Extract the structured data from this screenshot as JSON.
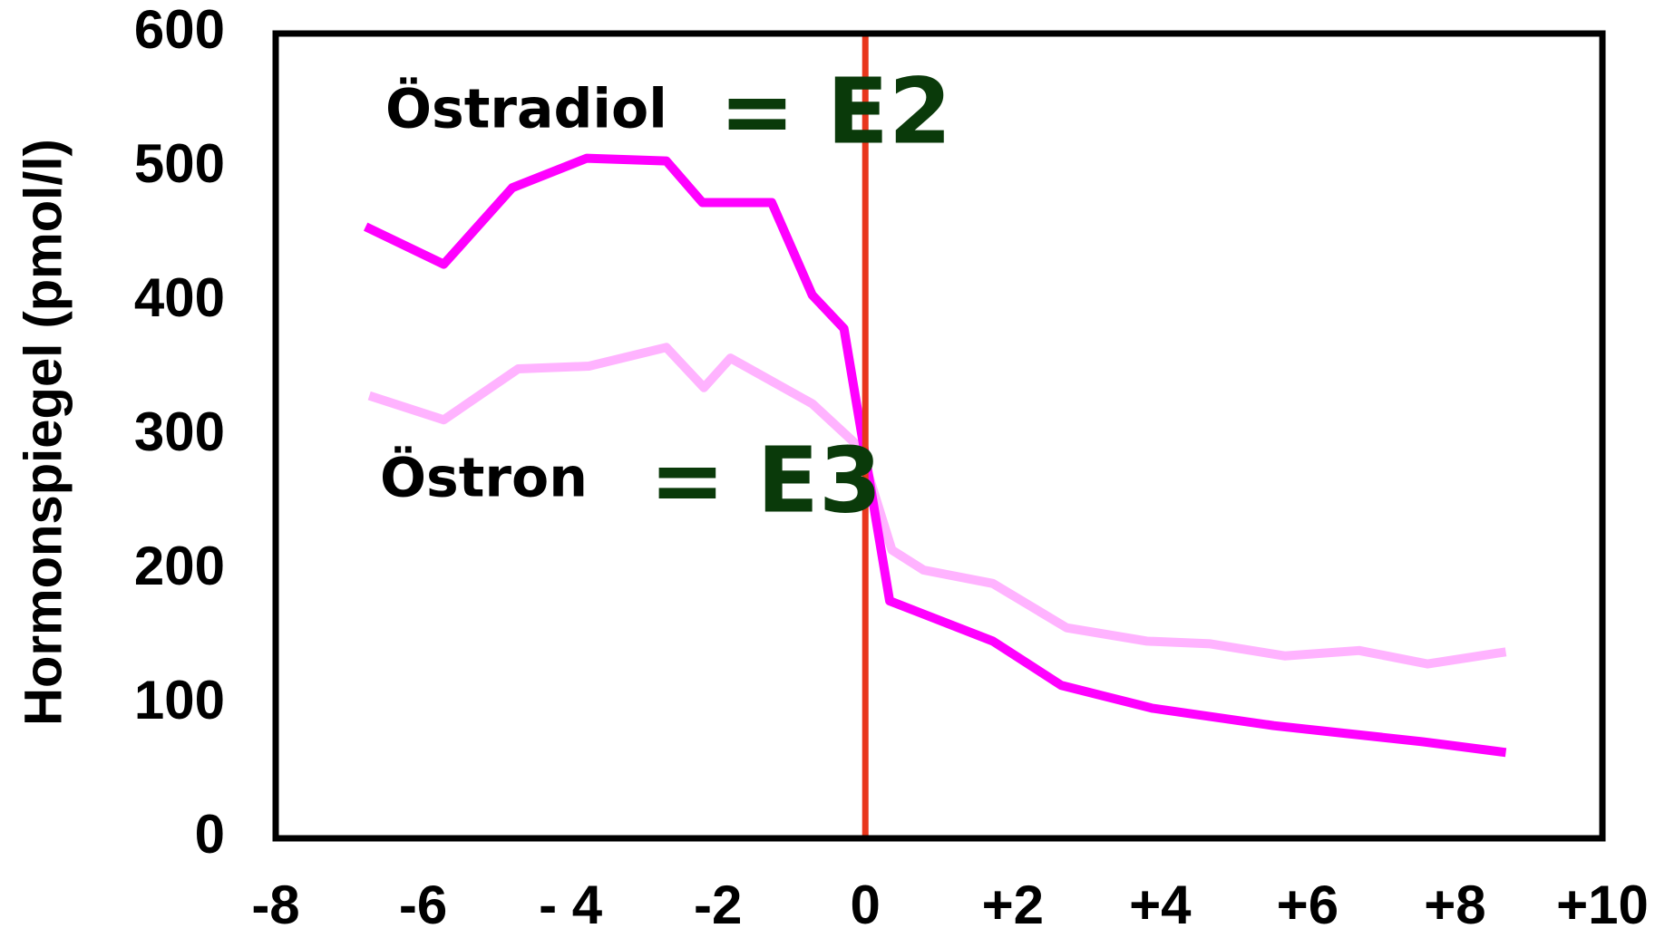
{
  "chart_data": {
    "type": "line",
    "ylabel": "Hormonspiegel (pmol/l)",
    "xlim": [
      -8,
      10
    ],
    "ylim": [
      0,
      600
    ],
    "xticks": [
      -8,
      -6,
      {
        "value": -4,
        "label": "- 4"
      },
      -2,
      0,
      {
        "value": 2,
        "label": "+2"
      },
      {
        "value": 4,
        "label": "+4"
      },
      {
        "value": 6,
        "label": "+6"
      },
      {
        "value": 8,
        "label": "+8"
      },
      {
        "value": 10,
        "label": "+10"
      }
    ],
    "yticks": [
      0,
      100,
      200,
      300,
      400,
      500,
      600
    ],
    "vline": {
      "value": 0,
      "color": "#e8361c"
    },
    "series": [
      {
        "name": "Östradiol",
        "annotation": "= E2",
        "color": "#ff00ff",
        "x": [
          -6.78,
          -5.72,
          -4.79,
          -3.78,
          -2.7,
          -2.21,
          -1.27,
          -0.72,
          -0.29,
          0.33,
          1.73,
          2.66,
          3.89,
          5.54,
          7.56,
          8.69
        ],
        "values": [
          456,
          428,
          485,
          507,
          505,
          474,
          474,
          405,
          380,
          177,
          147,
          114,
          97,
          84,
          72,
          64
        ]
      },
      {
        "name": "Östron",
        "annotation": "= E3",
        "color": "#ffb3ff",
        "x": [
          -6.73,
          -5.72,
          -4.71,
          -3.75,
          -2.7,
          -2.19,
          -1.83,
          -0.72,
          -0.07,
          0.36,
          0.79,
          1.73,
          2.73,
          3.82,
          4.68,
          5.69,
          6.7,
          7.63,
          8.69
        ],
        "values": [
          330,
          312,
          350,
          352,
          366,
          336,
          358,
          324,
          291,
          215,
          200,
          190,
          157,
          147,
          145,
          136,
          140,
          130,
          139
        ]
      }
    ]
  }
}
